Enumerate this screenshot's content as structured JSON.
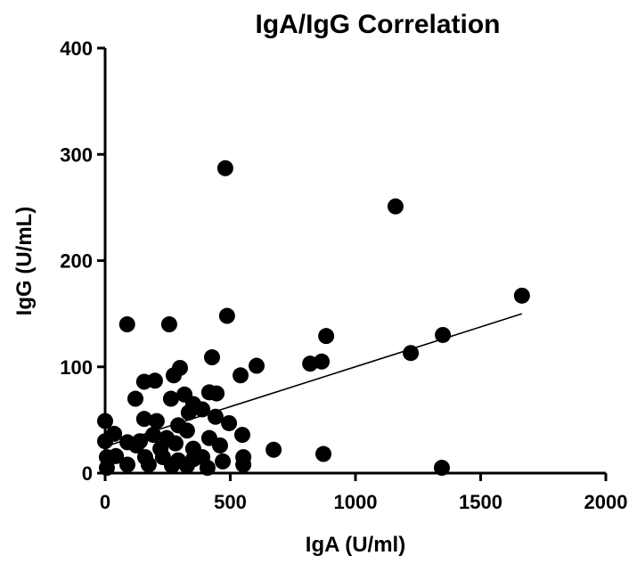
{
  "chart_data": {
    "type": "scatter",
    "title": "IgA/IgG Correlation",
    "xlabel": "IgA (U/ml)",
    "ylabel": "IgG (U/mL)",
    "xlim": [
      0,
      2000
    ],
    "ylim": [
      0,
      400
    ],
    "xticks": [
      "0",
      "500",
      "1000",
      "1500",
      "2000"
    ],
    "xtick_values": [
      0,
      500,
      1000,
      1500,
      2000
    ],
    "yticks": [
      "0",
      "100",
      "200",
      "300",
      "400"
    ],
    "ytick_values": [
      0,
      100,
      200,
      300,
      400
    ],
    "grid": false,
    "marker_color": "#000000",
    "points": [
      [
        88,
        140
      ],
      [
        256,
        140
      ],
      [
        487,
        148
      ],
      [
        427,
        109
      ],
      [
        605,
        101
      ],
      [
        541,
        92
      ],
      [
        299,
        99
      ],
      [
        274,
        92
      ],
      [
        156,
        86
      ],
      [
        199,
        87
      ],
      [
        416,
        76
      ],
      [
        445,
        75
      ],
      [
        121,
        70
      ],
      [
        263,
        70
      ],
      [
        317,
        74
      ],
      [
        352,
        65
      ],
      [
        388,
        60
      ],
      [
        334,
        57
      ],
      [
        441,
        53
      ],
      [
        495,
        47
      ],
      [
        0,
        49
      ],
      [
        156,
        51
      ],
      [
        206,
        49
      ],
      [
        292,
        45
      ],
      [
        327,
        40
      ],
      [
        36,
        37
      ],
      [
        548,
        36
      ],
      [
        673,
        22
      ],
      [
        0,
        30
      ],
      [
        89,
        29
      ],
      [
        139,
        30
      ],
      [
        192,
        36
      ],
      [
        246,
        33
      ],
      [
        281,
        28
      ],
      [
        416,
        33
      ],
      [
        459,
        26
      ],
      [
        352,
        23
      ],
      [
        552,
        15
      ],
      [
        552,
        8
      ],
      [
        470,
        11
      ],
      [
        409,
        5
      ],
      [
        7,
        15
      ],
      [
        43,
        16
      ],
      [
        89,
        8
      ],
      [
        7,
        5
      ],
      [
        160,
        15
      ],
      [
        231,
        15
      ],
      [
        292,
        12
      ],
      [
        352,
        13
      ],
      [
        174,
        8
      ],
      [
        267,
        7
      ],
      [
        327,
        7
      ],
      [
        388,
        15
      ],
      [
        125,
        26
      ],
      [
        221,
        23
      ],
      [
        480,
        287
      ],
      [
        1160,
        251
      ],
      [
        1665,
        167
      ],
      [
        1349,
        130
      ],
      [
        1221,
        113
      ],
      [
        883,
        129
      ],
      [
        819,
        103
      ],
      [
        865,
        105
      ],
      [
        872,
        18
      ],
      [
        1345,
        5
      ]
    ],
    "fit_line": {
      "x": [
        0,
        1665
      ],
      "y": [
        25,
        150
      ]
    }
  }
}
